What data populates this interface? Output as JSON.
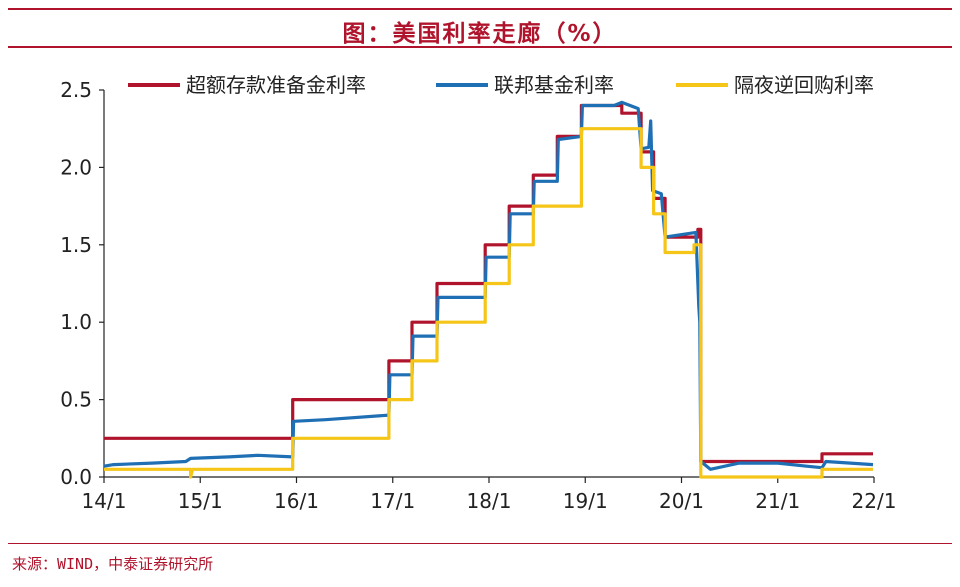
{
  "title": "图：美国利率走廊（%）",
  "source": "来源：WIND，中泰证券研究所",
  "chart_data": {
    "type": "line",
    "ylim": [
      0,
      2.5
    ],
    "yticks": [
      0.0,
      0.5,
      1.0,
      1.5,
      2.0,
      2.5
    ],
    "xlim": [
      2014,
      2022
    ],
    "xticks": [
      {
        "x": 2014,
        "label": "14/1"
      },
      {
        "x": 2015,
        "label": "15/1"
      },
      {
        "x": 2016,
        "label": "16/1"
      },
      {
        "x": 2017,
        "label": "17/1"
      },
      {
        "x": 2018,
        "label": "18/1"
      },
      {
        "x": 2019,
        "label": "19/1"
      },
      {
        "x": 2020,
        "label": "20/1"
      },
      {
        "x": 2021,
        "label": "21/1"
      },
      {
        "x": 2022,
        "label": "22/1"
      }
    ],
    "legend_position": "top",
    "grid": false,
    "series": [
      {
        "name": "超额存款准备金利率",
        "color": "#b0142c",
        "points": [
          [
            2014.0,
            0.25
          ],
          [
            2015.96,
            0.25
          ],
          [
            2015.96,
            0.5
          ],
          [
            2016.96,
            0.5
          ],
          [
            2016.96,
            0.75
          ],
          [
            2017.2,
            0.75
          ],
          [
            2017.2,
            1.0
          ],
          [
            2017.46,
            1.0
          ],
          [
            2017.46,
            1.25
          ],
          [
            2017.96,
            1.25
          ],
          [
            2017.96,
            1.5
          ],
          [
            2018.21,
            1.5
          ],
          [
            2018.21,
            1.75
          ],
          [
            2018.46,
            1.75
          ],
          [
            2018.46,
            1.95
          ],
          [
            2018.71,
            1.95
          ],
          [
            2018.71,
            2.2
          ],
          [
            2018.96,
            2.2
          ],
          [
            2018.96,
            2.4
          ],
          [
            2019.38,
            2.4
          ],
          [
            2019.38,
            2.35
          ],
          [
            2019.58,
            2.35
          ],
          [
            2019.58,
            2.1
          ],
          [
            2019.71,
            2.1
          ],
          [
            2019.71,
            1.8
          ],
          [
            2019.83,
            1.8
          ],
          [
            2019.83,
            1.55
          ],
          [
            2020.17,
            1.55
          ],
          [
            2020.17,
            1.6
          ],
          [
            2020.2,
            1.6
          ],
          [
            2020.2,
            0.1
          ],
          [
            2021.46,
            0.1
          ],
          [
            2021.46,
            0.15
          ],
          [
            2021.99,
            0.15
          ]
        ]
      },
      {
        "name": "联邦基金利率",
        "color": "#1f6fb5",
        "points": [
          [
            2014.0,
            0.07
          ],
          [
            2014.1,
            0.08
          ],
          [
            2014.5,
            0.09
          ],
          [
            2014.85,
            0.1
          ],
          [
            2014.9,
            0.12
          ],
          [
            2015.3,
            0.13
          ],
          [
            2015.6,
            0.14
          ],
          [
            2015.96,
            0.13
          ],
          [
            2015.97,
            0.36
          ],
          [
            2016.3,
            0.37
          ],
          [
            2016.96,
            0.4
          ],
          [
            2016.97,
            0.66
          ],
          [
            2017.2,
            0.66
          ],
          [
            2017.21,
            0.91
          ],
          [
            2017.46,
            0.91
          ],
          [
            2017.47,
            1.16
          ],
          [
            2017.96,
            1.16
          ],
          [
            2017.97,
            1.42
          ],
          [
            2018.21,
            1.42
          ],
          [
            2018.22,
            1.7
          ],
          [
            2018.46,
            1.7
          ],
          [
            2018.47,
            1.91
          ],
          [
            2018.71,
            1.91
          ],
          [
            2018.72,
            2.18
          ],
          [
            2018.96,
            2.2
          ],
          [
            2018.97,
            2.4
          ],
          [
            2019.3,
            2.4
          ],
          [
            2019.38,
            2.42
          ],
          [
            2019.55,
            2.38
          ],
          [
            2019.58,
            2.12
          ],
          [
            2019.66,
            2.13
          ],
          [
            2019.68,
            2.3
          ],
          [
            2019.7,
            1.85
          ],
          [
            2019.79,
            1.83
          ],
          [
            2019.83,
            1.55
          ],
          [
            2020.15,
            1.58
          ],
          [
            2020.18,
            1.1
          ],
          [
            2020.19,
            1.0
          ],
          [
            2020.2,
            0.1
          ],
          [
            2020.3,
            0.05
          ],
          [
            2020.6,
            0.09
          ],
          [
            2021.0,
            0.09
          ],
          [
            2021.3,
            0.07
          ],
          [
            2021.46,
            0.06
          ],
          [
            2021.5,
            0.1
          ],
          [
            2021.99,
            0.08
          ]
        ]
      },
      {
        "name": "隔夜逆回购利率",
        "color": "#f5c518",
        "points": [
          [
            2014.0,
            0.05
          ],
          [
            2014.9,
            0.05
          ],
          [
            2014.9,
            0.0
          ],
          [
            2014.92,
            0.05
          ],
          [
            2015.96,
            0.05
          ],
          [
            2015.96,
            0.25
          ],
          [
            2016.96,
            0.25
          ],
          [
            2016.96,
            0.5
          ],
          [
            2017.2,
            0.5
          ],
          [
            2017.2,
            0.75
          ],
          [
            2017.46,
            0.75
          ],
          [
            2017.46,
            1.0
          ],
          [
            2017.96,
            1.0
          ],
          [
            2017.96,
            1.25
          ],
          [
            2018.21,
            1.25
          ],
          [
            2018.21,
            1.5
          ],
          [
            2018.46,
            1.5
          ],
          [
            2018.46,
            1.75
          ],
          [
            2018.96,
            1.75
          ],
          [
            2018.96,
            2.25
          ],
          [
            2019.58,
            2.25
          ],
          [
            2019.58,
            2.0
          ],
          [
            2019.71,
            2.0
          ],
          [
            2019.71,
            1.7
          ],
          [
            2019.83,
            1.7
          ],
          [
            2019.83,
            1.45
          ],
          [
            2020.13,
            1.45
          ],
          [
            2020.13,
            1.5
          ],
          [
            2020.2,
            1.5
          ],
          [
            2020.2,
            0.0
          ],
          [
            2021.46,
            0.0
          ],
          [
            2021.46,
            0.05
          ],
          [
            2021.99,
            0.05
          ]
        ]
      }
    ]
  }
}
